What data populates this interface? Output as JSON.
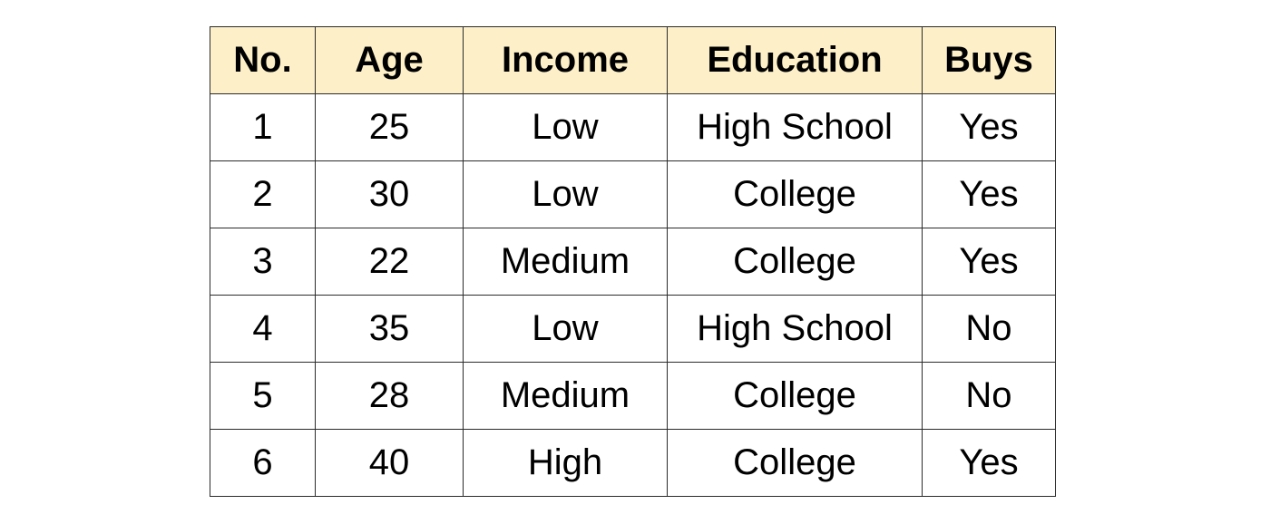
{
  "table": {
    "headers": [
      "No.",
      "Age",
      "Income",
      "Education",
      "Buys"
    ],
    "rows": [
      [
        "1",
        "25",
        "Low",
        "High School",
        "Yes"
      ],
      [
        "2",
        "30",
        "Low",
        "College",
        "Yes"
      ],
      [
        "3",
        "22",
        "Medium",
        "College",
        "Yes"
      ],
      [
        "4",
        "35",
        "Low",
        "High School",
        "No"
      ],
      [
        "5",
        "28",
        "Medium",
        "College",
        "No"
      ],
      [
        "6",
        "40",
        "High",
        "College",
        "Yes"
      ]
    ],
    "header_background": "#fdf0c8",
    "border_color": "#2b2b2b"
  }
}
